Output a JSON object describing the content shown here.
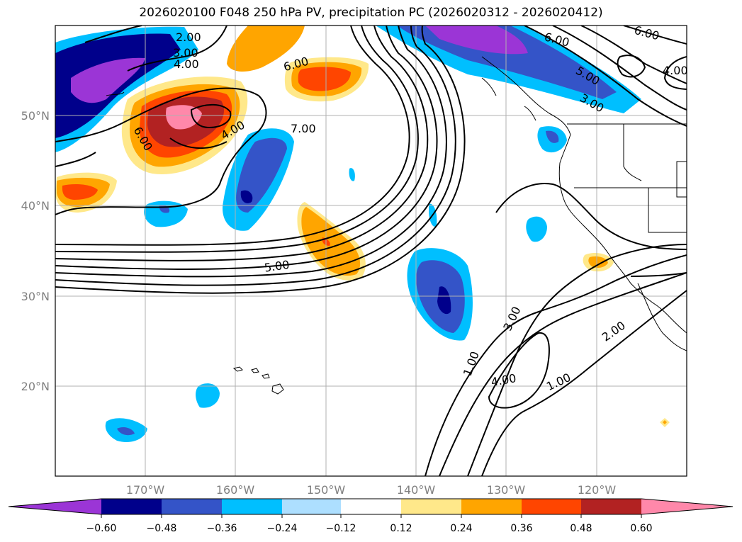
{
  "title": "2026020100 F048 250 hPa PV, precipitation PC (2026020312 - 2026020412)",
  "map": {
    "lon_ticks": [
      -170,
      -160,
      -150,
      -140,
      -130,
      -120
    ],
    "lon_labels": [
      "170°W",
      "160°W",
      "150°W",
      "140°W",
      "130°W",
      "120°W"
    ],
    "lat_ticks": [
      20,
      30,
      40,
      50
    ],
    "lat_labels": [
      "20°N",
      "30°N",
      "40°N",
      "50°N"
    ],
    "grid": true
  },
  "colorbar": {
    "tick_labels": [
      "−0.60",
      "−0.48",
      "−0.36",
      "−0.24",
      "−0.12",
      "0.12",
      "0.24",
      "0.36",
      "0.48",
      "0.60"
    ],
    "colors": [
      "#9b35d6",
      "#00008b",
      "#3454c8",
      "#00bfff",
      "#addfff",
      "#ffffff",
      "#ffe88a",
      "#ffa500",
      "#ff4500",
      "#b22222",
      "#ff88aa"
    ],
    "extend": "both"
  },
  "contour_labels": [
    "2.00",
    "3.00",
    "4.00",
    "6.00",
    "7.00",
    "6.00",
    "4.00",
    "5.00",
    "6.00",
    "5.00",
    "3.00",
    "6.00",
    "4.00",
    "3.00",
    "4.00",
    "2.00",
    "1.00",
    "1.00"
  ]
}
